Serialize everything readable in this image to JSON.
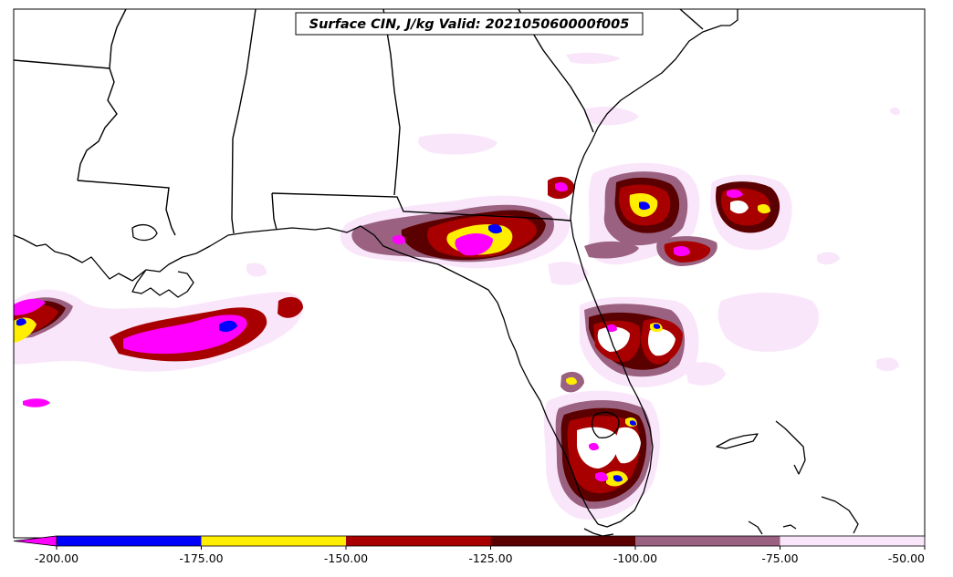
{
  "title": "Surface CIN, J/kg Valid: 202105060000f005",
  "colorbar": {
    "ticks": [
      "-200.00",
      "-175.00",
      "-150.00",
      "-125.00",
      "-100.00",
      "-75.00",
      "-50.00"
    ],
    "tick_values": [
      -200,
      -175,
      -150,
      -125,
      -100,
      -75,
      -50
    ],
    "extend_color": "#ff00ff",
    "segments": [
      {
        "from": -200,
        "to": -175,
        "color": "#0000ff"
      },
      {
        "from": -175,
        "to": -150,
        "color": "#ffee00"
      },
      {
        "from": -150,
        "to": -125,
        "color": "#a80000"
      },
      {
        "from": -125,
        "to": -100,
        "color": "#5a0000"
      },
      {
        "from": -100,
        "to": -75,
        "color": "#9a6280"
      },
      {
        "from": -75,
        "to": -50,
        "color": "#fae6fa"
      }
    ]
  },
  "fill_colors": {
    "lightest": "#fae6fa",
    "mauve": "#9a6280",
    "dark_red": "#5a0000",
    "red": "#a80000",
    "yellow": "#ffee00",
    "blue": "#0000ff",
    "magenta": "#ff00ff"
  }
}
